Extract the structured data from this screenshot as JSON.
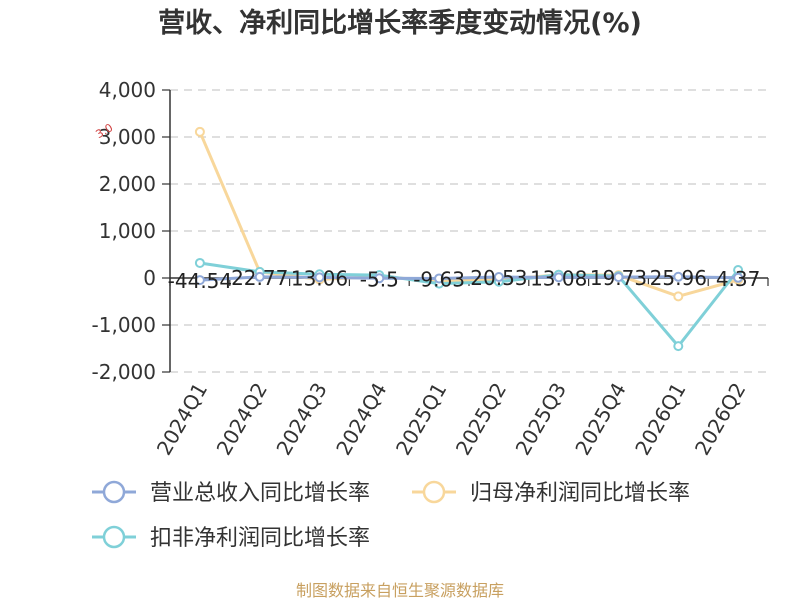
{
  "chart_data": {
    "type": "line",
    "title": "营收、净利同比增长率季度变动情况(%)",
    "categories": [
      "2024Q1",
      "2024Q2",
      "2024Q3",
      "2024Q4",
      "2025Q1",
      "2025Q2",
      "2025Q3",
      "2025Q4",
      "2026Q1",
      "2026Q2"
    ],
    "ylim": [
      -2000,
      4000
    ],
    "yticks": [
      4000,
      3000,
      2000,
      1000,
      0,
      -1000,
      -2000
    ],
    "ytick_labels": [
      "4,000",
      "3,000",
      "2,000",
      "1,000",
      "0",
      "-1,000",
      "-2,000"
    ],
    "grid": true,
    "legend_position": "bottom-left",
    "series": [
      {
        "name": "营业总收入同比增长率",
        "color": "#8fa8d8",
        "values": [
          -44.54,
          22.77,
          13.06,
          -5.5,
          -9.63,
          20.53,
          13.08,
          19.73,
          25.96,
          4.37
        ]
      },
      {
        "name": "归母净利润同比增长率",
        "color": "#f8d79b",
        "values": [
          3110,
          130,
          -30,
          30,
          -60,
          -40,
          70,
          60,
          -390,
          -40
        ]
      },
      {
        "name": "扣非净利润同比增长率",
        "color": "#7fd0d8",
        "values": [
          320,
          130,
          80,
          60,
          -120,
          -80,
          70,
          40,
          -1450,
          170
        ]
      }
    ],
    "data_labels": [
      "-44.54",
      "22.77",
      "13.06",
      "-5.5",
      "-9.63",
      "20.53",
      "13.08",
      "19.73",
      "25.96",
      "4.37"
    ],
    "annotation": "3.0"
  },
  "source_text": "制图数据来自恒生聚源数据库",
  "source_color": "#c8a060"
}
